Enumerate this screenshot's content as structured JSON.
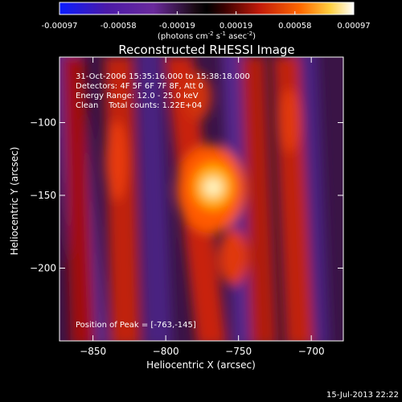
{
  "colorbar": {
    "ticks": [
      "-0.00097",
      "-0.00058",
      "-0.00019",
      "0.00019",
      "0.00058",
      "0.00097"
    ],
    "unit_prefix": "(photons cm",
    "unit_sup1": "-2",
    "unit_mid": " s",
    "unit_sup2": "-1",
    "unit_mid2": " asec",
    "unit_sup3": "-2",
    "unit_suffix": ")"
  },
  "chart_data": {
    "type": "heatmap",
    "title": "Reconstructed RHESSI Image",
    "xlabel": "Heliocentric X (arcsec)",
    "ylabel": "Heliocentric Y (arcsec)",
    "xlim": [
      -873,
      -678
    ],
    "ylim": [
      -250,
      -55
    ],
    "xticks": [
      -850,
      -800,
      -750,
      -700
    ],
    "yticks": [
      -100,
      -150,
      -200
    ],
    "colorbar_range": [
      -0.00097,
      0.00097
    ],
    "peak": {
      "x": -763,
      "y": -145
    },
    "info_lines": [
      "31-Oct-2006 15:35:16.000 to 15:38:18.000",
      "Detectors: 4F 5F 6F 7F 8F, Att 0",
      "Energy Range: 12.0 - 25.0 keV",
      "Clean    Total counts: 1.22E+04"
    ],
    "peak_label": "Position of Peak = [-763,-145]"
  },
  "footer": {
    "date": "15-Jul-2013 22:22"
  }
}
